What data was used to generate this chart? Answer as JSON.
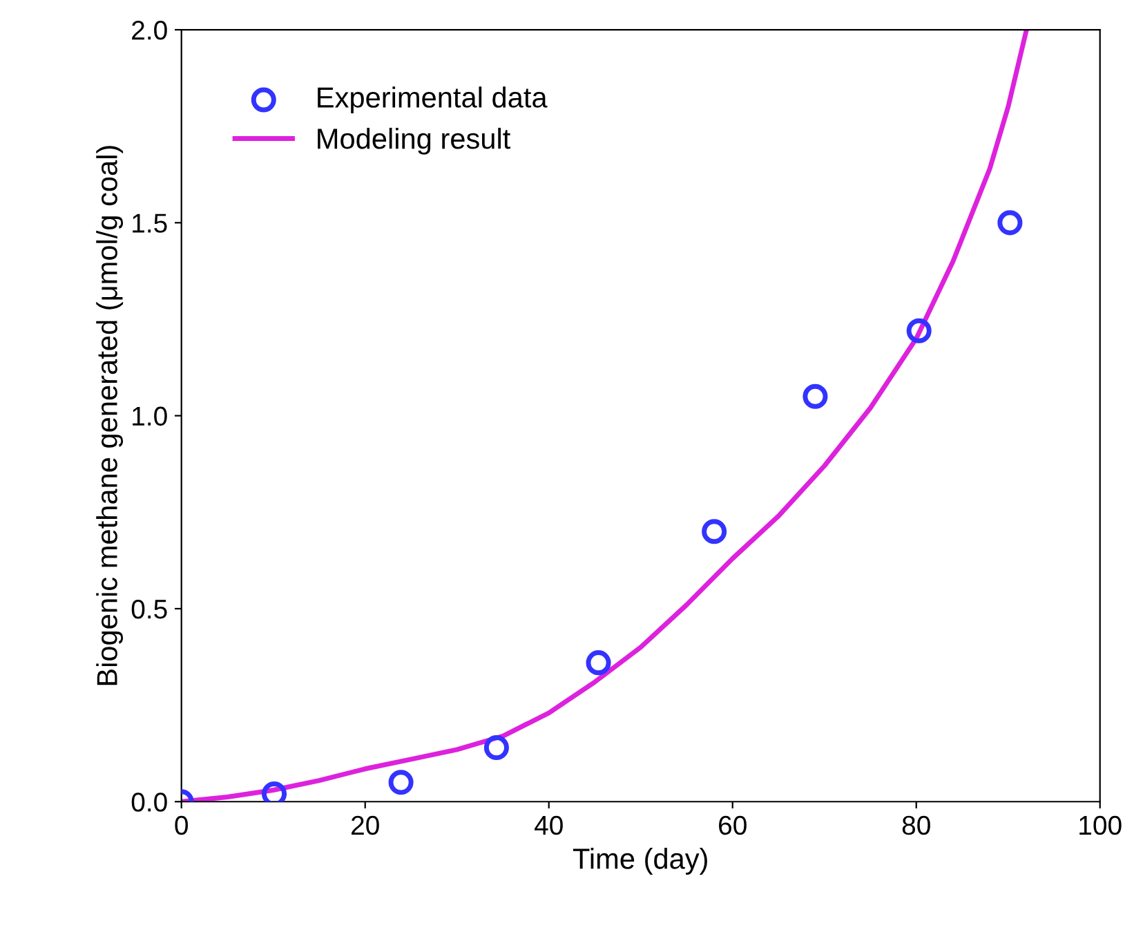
{
  "chart_data": {
    "type": "scatter",
    "xlabel": "Time (day)",
    "ylabel": "Biogenic methane generated (μmol/g coal)",
    "xlim": [
      0,
      100
    ],
    "xticks": [
      0,
      20,
      40,
      60,
      80,
      100
    ],
    "ylim": [
      0,
      2.0
    ],
    "yticks": [
      {
        "value": 0,
        "label": "0.0"
      },
      {
        "value": 0.5,
        "label": "0.5"
      },
      {
        "value": 1.0,
        "label": "1.0"
      },
      {
        "value": 1.5,
        "label": "1.5"
      },
      {
        "value": 2.0,
        "label": "2.0"
      }
    ],
    "grid": false,
    "legend": "top left",
    "series": [
      {
        "name": "Experimental data",
        "marker": "circle",
        "color": "#3333ff",
        "x": [
          0,
          10.1,
          23.9,
          34.3,
          45.4,
          58.0,
          69.0,
          80.3,
          90.2
        ],
        "values": [
          0,
          0.02,
          0.05,
          0.14,
          0.36,
          0.7,
          1.05,
          1.22,
          1.5
        ]
      },
      {
        "name": "Modeling result",
        "type": "line",
        "marker": "none",
        "line_style": "solid",
        "color": "#dd22dd",
        "x": [
          0,
          5,
          10,
          15,
          20,
          25,
          30,
          35,
          40,
          45,
          50,
          55,
          60,
          65,
          70,
          75,
          80,
          84,
          88,
          90,
          92
        ],
        "values": [
          0,
          0.012,
          0.03,
          0.055,
          0.085,
          0.11,
          0.135,
          0.17,
          0.23,
          0.31,
          0.4,
          0.51,
          0.63,
          0.74,
          0.87,
          1.02,
          1.2,
          1.4,
          1.64,
          1.8,
          2.0
        ]
      }
    ]
  }
}
